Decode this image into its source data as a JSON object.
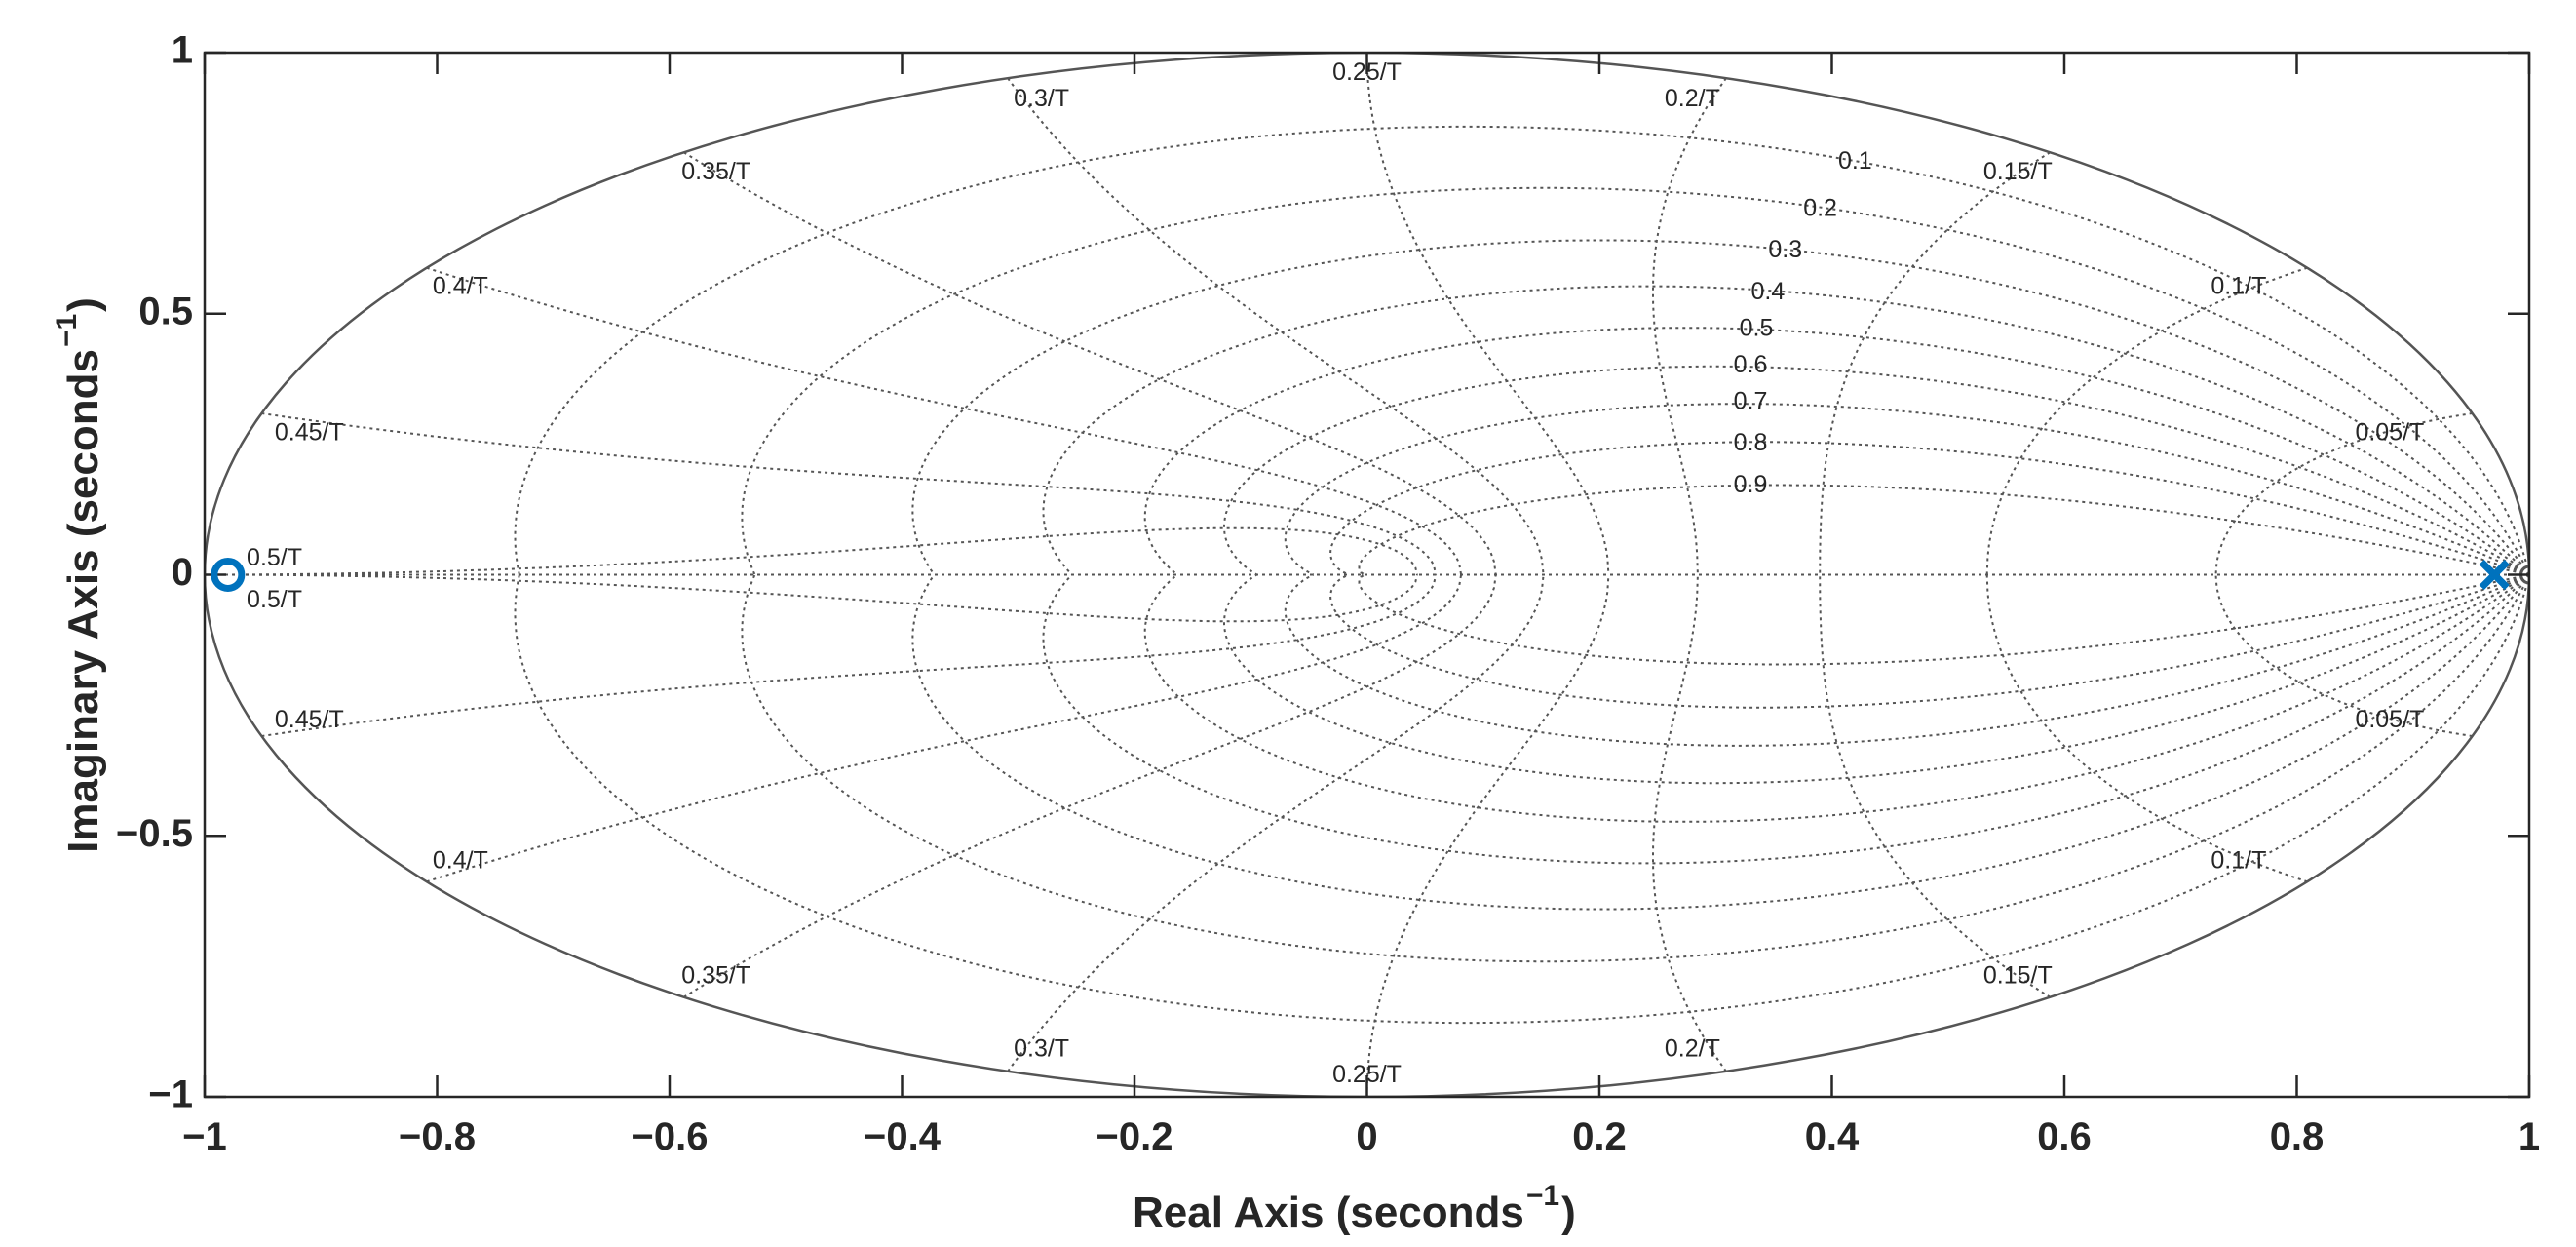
{
  "chart_data": {
    "type": "scatter",
    "xlabel": "Real Axis (seconds",
    "ylabel": "Imaginary Axis (seconds",
    "axis_unit_exponent": "−1",
    "xlim": [
      -1,
      1
    ],
    "ylim": [
      -1,
      1
    ],
    "xticks": [
      -1,
      -0.8,
      -0.6,
      -0.4,
      -0.2,
      0,
      0.2,
      0.4,
      0.6,
      0.8,
      1
    ],
    "xtick_labels": [
      "−1",
      "−0.8",
      "−0.6",
      "−0.4",
      "−0.2",
      "0",
      "0.2",
      "0.4",
      "0.6",
      "0.8",
      "1"
    ],
    "yticks": [
      -1,
      -0.5,
      0,
      0.5,
      1
    ],
    "ytick_labels": [
      "−1",
      "−0.5",
      "0",
      "0.5",
      "1"
    ],
    "grid": true,
    "unit_circle": true,
    "zeta_values": [
      0.1,
      0.2,
      0.3,
      0.4,
      0.5,
      0.6,
      0.7,
      0.8,
      0.9
    ],
    "zeta_labels": [
      {
        "text": "0.1",
        "x": 0.42,
        "y": 0.79
      },
      {
        "text": "0.2",
        "x": 0.39,
        "y": 0.7
      },
      {
        "text": "0.3",
        "x": 0.36,
        "y": 0.62
      },
      {
        "text": "0.4",
        "x": 0.345,
        "y": 0.54
      },
      {
        "text": "0.5",
        "x": 0.335,
        "y": 0.47
      },
      {
        "text": "0.6",
        "x": 0.33,
        "y": 0.4
      },
      {
        "text": "0.7",
        "x": 0.33,
        "y": 0.33
      },
      {
        "text": "0.8",
        "x": 0.33,
        "y": 0.25
      },
      {
        "text": "0.9",
        "x": 0.33,
        "y": 0.17
      }
    ],
    "natural_freq_values": [
      0.05,
      0.1,
      0.15,
      0.2,
      0.25,
      0.3,
      0.35,
      0.4,
      0.45,
      0.5
    ],
    "wn_labels": [
      {
        "text": "0.05/T",
        "x": 0.88,
        "y": 0.27
      },
      {
        "text": "0.1/T",
        "x": 0.75,
        "y": 0.55
      },
      {
        "text": "0.15/T",
        "x": 0.56,
        "y": 0.77
      },
      {
        "text": "0.2/T",
        "x": 0.28,
        "y": 0.91
      },
      {
        "text": "0.25/T",
        "x": 0.0,
        "y": 0.96
      },
      {
        "text": "0.3/T",
        "x": -0.28,
        "y": 0.91
      },
      {
        "text": "0.35/T",
        "x": -0.56,
        "y": 0.77
      },
      {
        "text": "0.4/T",
        "x": -0.78,
        "y": 0.55
      },
      {
        "text": "0.45/T",
        "x": -0.91,
        "y": 0.27
      },
      {
        "text": "0.5/T",
        "x": -0.94,
        "y": 0.03
      },
      {
        "text": "0.5/T",
        "x": -0.94,
        "y": -0.05
      },
      {
        "text": "0.45/T",
        "x": -0.91,
        "y": -0.28
      },
      {
        "text": "0.4/T",
        "x": -0.78,
        "y": -0.55
      },
      {
        "text": "0.35/T",
        "x": -0.56,
        "y": -0.77
      },
      {
        "text": "0.3/T",
        "x": -0.28,
        "y": -0.91
      },
      {
        "text": "0.25/T",
        "x": 0.0,
        "y": -0.96
      },
      {
        "text": "0.2/T",
        "x": 0.28,
        "y": -0.91
      },
      {
        "text": "0.15/T",
        "x": 0.56,
        "y": -0.77
      },
      {
        "text": "0.1/T",
        "x": 0.75,
        "y": -0.55
      },
      {
        "text": "0.05/T",
        "x": 0.88,
        "y": -0.28
      }
    ],
    "poles": [
      {
        "x": 0.97,
        "y": 0.0
      },
      {
        "x": 0.97,
        "y": 0.0
      }
    ],
    "zeros": [
      {
        "x": -0.98,
        "y": 0.0
      }
    ],
    "marker_color": "#0072BD",
    "grid_color": "#555555",
    "axis_color": "#262626"
  }
}
